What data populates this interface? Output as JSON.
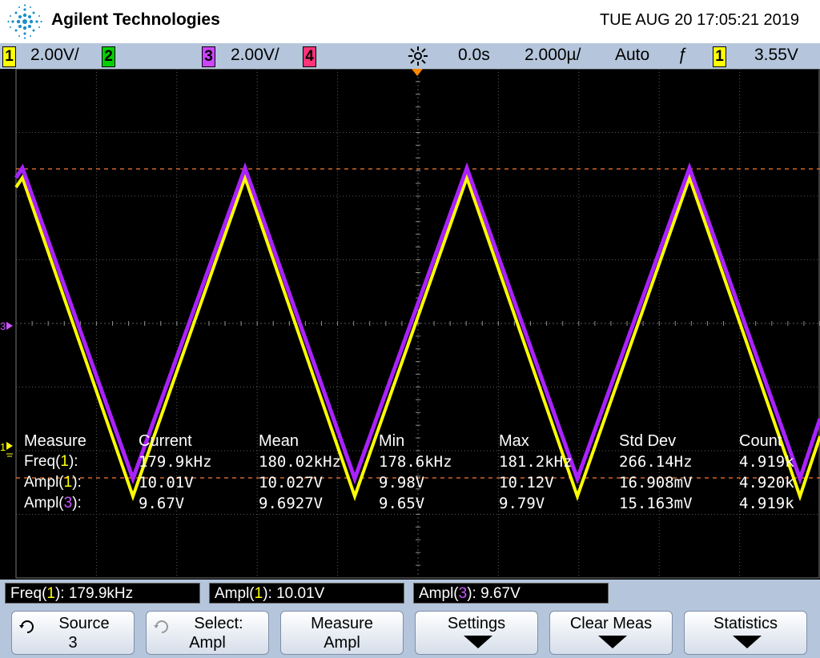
{
  "header": {
    "brand": "Agilent Technologies",
    "datetime": "TUE AUG 20 17:05:21 2019"
  },
  "status": {
    "ch1_num": "1",
    "ch1_scale": "2.00V/",
    "ch2_num": "2",
    "ch3_num": "3",
    "ch3_scale": "2.00V/",
    "ch4_num": "4",
    "delay": "0.0s",
    "timebase": "2.000µ/",
    "trigger_mode": "Auto",
    "trigger_slope": "ƒ",
    "trigger_source": "1",
    "trigger_level": "3.55V"
  },
  "markers": {
    "ch3_marker": "3",
    "ch1_marker": "1"
  },
  "measurements": {
    "headers": [
      "Measure",
      "Current",
      "Mean",
      "Min",
      "Max",
      "Std Dev",
      "Count"
    ],
    "rows": [
      {
        "name": "Freq(",
        "ch": "1",
        "close": "):",
        "current": "179.9kHz",
        "mean": "180.02kHz",
        "min": "178.6kHz",
        "max": "181.2kHz",
        "std": "266.14Hz",
        "count": "4.919k"
      },
      {
        "name": "Ampl(",
        "ch": "1",
        "close": "):",
        "current": "10.01V",
        "mean": "10.027V",
        "min": "9.98V",
        "max": "10.12V",
        "std": "16.908mV",
        "count": "4.920k"
      },
      {
        "name": "Ampl(",
        "ch": "3",
        "close": "):",
        "current": "9.67V",
        "mean": "9.6927V",
        "min": "9.65V",
        "max": "9.79V",
        "std": "15.163mV",
        "count": "4.919k"
      }
    ]
  },
  "readouts": [
    {
      "pre": "Freq(",
      "ch": "1",
      "post": "): 179.9kHz"
    },
    {
      "pre": "Ampl(",
      "ch": "1",
      "post": "): 10.01V"
    },
    {
      "pre": "Ampl(",
      "ch": "3",
      "post": "): 9.67V"
    }
  ],
  "softkeys": [
    {
      "line1": "Source",
      "line2": "3",
      "icon": "rotate-knob-icon"
    },
    {
      "line1": "Select:",
      "line2": "Ampl",
      "icon": "rotate-knob-icon"
    },
    {
      "line1": "Measure",
      "line2": "Ampl"
    },
    {
      "line1": "Settings",
      "icon": "down-arrow-icon"
    },
    {
      "line1": "Clear Meas",
      "icon": "down-arrow-icon"
    },
    {
      "line1": "Statistics",
      "icon": "down-arrow-icon"
    }
  ],
  "colors": {
    "ch1": "#ffff00",
    "ch3": "#aa22ff",
    "background": "#000000",
    "grid": "#5a5a5a",
    "bars": "#b5c6dc"
  }
}
